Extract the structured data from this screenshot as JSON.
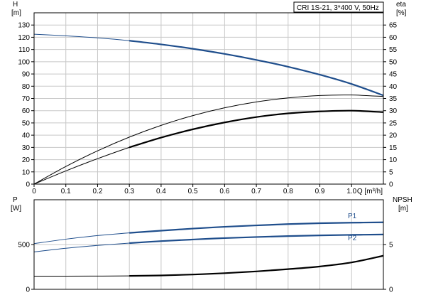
{
  "pump_label": "CRI 1S-21, 3*400 V, 50Hz",
  "colors": {
    "blue": "#1f4e8c",
    "black": "#000000",
    "grid": "#c8c8c8"
  },
  "chart_data": [
    {
      "type": "line",
      "xlabel": "Q [m³/h]",
      "ylabel_left": [
        "H",
        "[m]"
      ],
      "ylabel_right": [
        "eta",
        "[%]"
      ],
      "xlim": [
        0,
        1.1
      ],
      "ylim_left": [
        0,
        140
      ],
      "ylim_right": [
        0,
        70
      ],
      "x_ticks": [
        "0",
        "0.1",
        "0.2",
        "0.3",
        "0.4",
        "0.5",
        "0.6",
        "0.7",
        "0.8",
        "0.9",
        "1.0",
        "Q [m³/h]"
      ],
      "y_ticks_left": [
        "0",
        "10",
        "20",
        "30",
        "40",
        "50",
        "60",
        "70",
        "80",
        "90",
        "100",
        "110",
        "120",
        "130"
      ],
      "y_ticks_right": [
        "0",
        "5",
        "10",
        "15",
        "20",
        "25",
        "30",
        "35",
        "40",
        "45",
        "50",
        "55",
        "60",
        "65"
      ],
      "grid": true,
      "series": [
        {
          "axis": "left",
          "color": "#1f4e8c",
          "x": [
            0,
            0.1,
            0.2,
            0.3,
            0.4,
            0.5,
            0.6,
            0.7,
            0.8,
            0.9,
            1.0,
            1.1
          ],
          "y": [
            122.5,
            121.2,
            119.5,
            117.2,
            114.2,
            110.6,
            106.4,
            101.5,
            95.9,
            89.4,
            81.8,
            72.5
          ],
          "bold_from": 0.3
        },
        {
          "axis": "right",
          "color": "#000000",
          "x": [
            0,
            0.1,
            0.2,
            0.3,
            0.4,
            0.5,
            0.6,
            0.7,
            0.8,
            0.9,
            1.0,
            1.1
          ],
          "y": [
            0,
            7.2,
            13.6,
            19.2,
            24.0,
            28.0,
            31.2,
            33.6,
            35.2,
            36.2,
            36.4,
            35.8
          ]
        },
        {
          "axis": "right",
          "color": "#000000",
          "x": [
            0,
            0.1,
            0.2,
            0.3,
            0.4,
            0.5,
            0.6,
            0.7,
            0.8,
            0.9,
            1.0,
            1.1
          ],
          "y": [
            0,
            5.4,
            10.4,
            15.0,
            19.0,
            22.4,
            25.2,
            27.4,
            28.9,
            29.7,
            30.0,
            29.4
          ],
          "bold_from": 0.3
        }
      ]
    },
    {
      "type": "line",
      "ylabel_left": [
        "P",
        "[W]"
      ],
      "ylabel_right": [
        "NPSH",
        "[m]"
      ],
      "xlim": [
        0,
        1.1
      ],
      "ylim_left": [
        0,
        1000
      ],
      "ylim_right": [
        0,
        10
      ],
      "y_ticks_left": [
        "0",
        "500"
      ],
      "y_ticks_right": [
        "0",
        "5"
      ],
      "grid": true,
      "series": [
        {
          "name": "P1",
          "axis": "left",
          "color": "#1f4e8c",
          "x": [
            0,
            0.1,
            0.2,
            0.3,
            0.4,
            0.5,
            0.6,
            0.7,
            0.8,
            0.9,
            1.0,
            1.1
          ],
          "y": [
            510,
            560,
            600,
            630,
            655,
            678,
            698,
            714,
            728,
            738,
            744,
            748
          ],
          "bold_from": 0.3
        },
        {
          "name": "P2",
          "axis": "left",
          "color": "#1f4e8c",
          "x": [
            0,
            0.1,
            0.2,
            0.3,
            0.4,
            0.5,
            0.6,
            0.7,
            0.8,
            0.9,
            1.0,
            1.1
          ],
          "y": [
            418,
            458,
            490,
            516,
            538,
            556,
            572,
            584,
            594,
            602,
            608,
            612
          ],
          "bold_from": 0.3
        },
        {
          "axis": "right",
          "color": "#000000",
          "x": [
            0,
            0.1,
            0.2,
            0.3,
            0.4,
            0.5,
            0.6,
            0.7,
            0.8,
            0.9,
            1.0,
            1.1
          ],
          "y": [
            1.47,
            1.47,
            1.48,
            1.5,
            1.55,
            1.65,
            1.8,
            2.0,
            2.25,
            2.55,
            3.0,
            3.75
          ],
          "bold_from": 0.3
        }
      ]
    }
  ]
}
